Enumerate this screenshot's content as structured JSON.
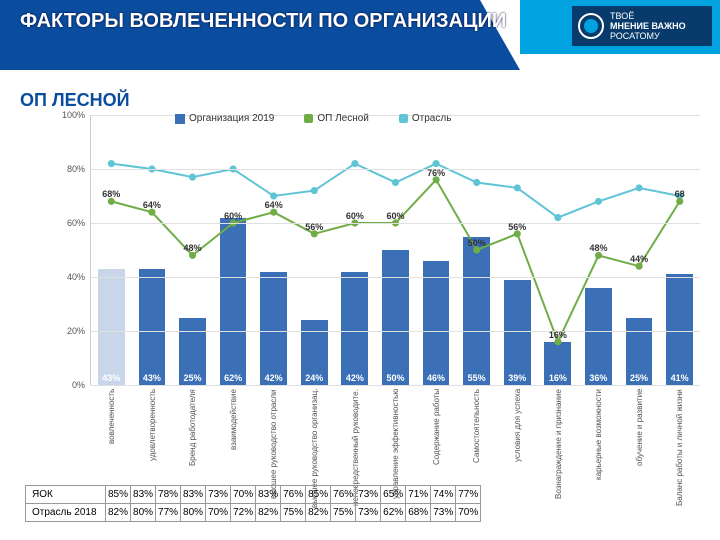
{
  "header": {
    "title": "ФАКТОРЫ ВОВЛЕЧЕННОСТИ ПО ОРГАНИЗАЦИИ",
    "subtitle": "ОП ЛЕСНОЙ",
    "logo_top": "ТВОЁ",
    "logo_mid": "МНЕНИЕ ВАЖНО",
    "logo_bot": "РОСАТОМУ"
  },
  "chart": {
    "type": "bar+line",
    "y": {
      "min": 0,
      "max": 100,
      "ticks": [
        0,
        20,
        40,
        60,
        80,
        100
      ]
    },
    "categories": [
      "вовлеченность",
      "удовлетворенность",
      "Бренд работодателя",
      "взаимодействие",
      "высшее руководство отрасли",
      "высшее руководство организац.",
      "непосредственный руководите.",
      "управление эффективностью",
      "Содержание работы",
      "Самостоятельность",
      "условия для успеха",
      "Вознаграждение и признание",
      "карьерные возможности",
      "обучение и развитие",
      "Баланс работы и личной жизни"
    ],
    "legend": {
      "bar": "Организация 2019",
      "line1": "ОП Лесной",
      "line2": "Отрасль"
    },
    "bar_color": "#3b6fb6",
    "bar_color_first": "#c9d6ea",
    "bar_values": [
      43,
      43,
      25,
      62,
      42,
      24,
      42,
      50,
      46,
      55,
      39,
      16,
      36,
      25,
      41
    ],
    "line1_color": "#70ad47",
    "line1_values": [
      68,
      64,
      48,
      60,
      64,
      56,
      60,
      60,
      76,
      50,
      56,
      16,
      48,
      44,
      68
    ],
    "line1_labels": [
      "68%",
      "64%",
      "48%",
      "60%",
      "64%",
      "56%",
      "60%",
      "60%",
      "76%",
      "50%",
      "56%",
      "16%",
      "48%",
      "44%",
      "68"
    ],
    "line2_color": "#5fc4d6",
    "line2_values": [
      82,
      80,
      77,
      80,
      70,
      72,
      82,
      75,
      82,
      75,
      73,
      62,
      68,
      73,
      70
    ],
    "marker_size": 5,
    "background_color": "#ffffff",
    "grid_color": "#e0e0e0"
  },
  "table": {
    "rows": [
      {
        "label": "ЯОК",
        "cells": [
          "85%",
          "83%",
          "78%",
          "83%",
          "73%",
          "70%",
          "83%",
          "76%",
          "85%",
          "76%",
          "73%",
          "65%",
          "71%",
          "74%",
          "77%"
        ]
      },
      {
        "label": "Отрасль 2018",
        "cells": [
          "82%",
          "80%",
          "77%",
          "80%",
          "70%",
          "72%",
          "82%",
          "75%",
          "82%",
          "75%",
          "73%",
          "62%",
          "68%",
          "73%",
          "70%"
        ]
      }
    ]
  }
}
